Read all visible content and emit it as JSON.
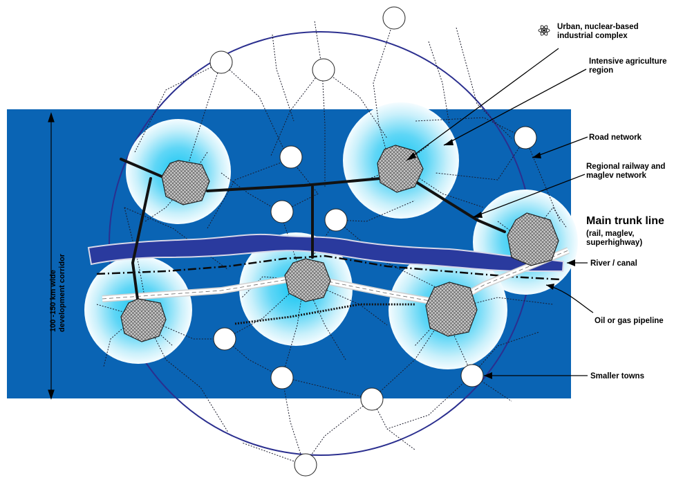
{
  "corridor_label": [
    "100 -150 km wide",
    "development corridor"
  ],
  "labels": {
    "urban_complex": [
      "Urban, nuclear-based",
      "industrial complex"
    ],
    "agriculture": [
      "Intensive agriculture",
      "region"
    ],
    "road_network": [
      "Road network"
    ],
    "railway": [
      "Regional railway and",
      "maglev network"
    ],
    "trunk_title": "Main trunk line",
    "trunk_sub": [
      "(rail, maglev,",
      "superhighway)"
    ],
    "river": [
      "River / canal"
    ],
    "pipeline": [
      "Oil or gas pipeline"
    ],
    "towns": [
      "Smaller towns"
    ]
  },
  "icons": {
    "atom": "atom-icon"
  },
  "colors": {
    "corridor": "#0a64b4",
    "river": "#2a3a9e",
    "boundary": "#2b2f8f",
    "agri_center": "#18c8f0",
    "city_fill": "#b9b9b9"
  }
}
